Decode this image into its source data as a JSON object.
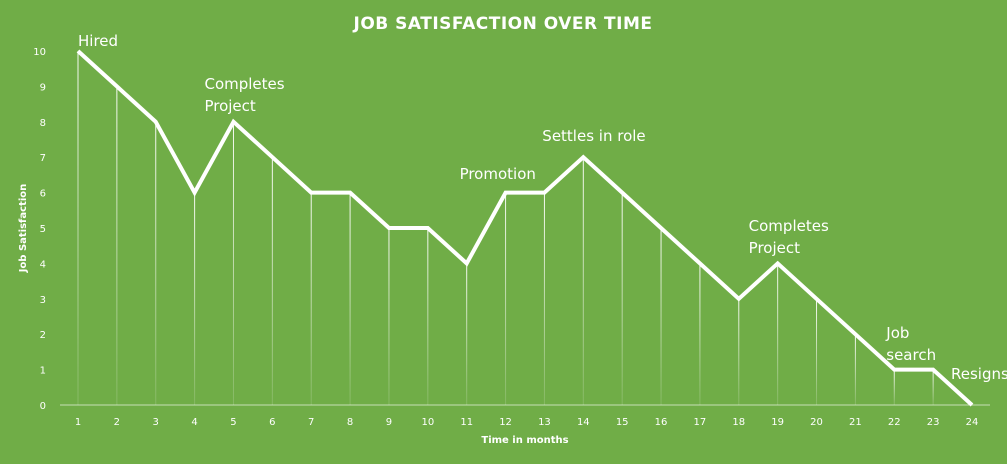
{
  "chart_data": {
    "type": "line",
    "title": "JOB SATISFACTION  OVER TIME",
    "xlabel": "Time in months",
    "ylabel": "Job Satisfaction",
    "x": [
      1,
      2,
      3,
      4,
      5,
      6,
      7,
      8,
      9,
      10,
      11,
      12,
      13,
      14,
      15,
      16,
      17,
      18,
      19,
      20,
      21,
      22,
      23,
      24
    ],
    "y_ticks": [
      0,
      1,
      2,
      3,
      4,
      5,
      6,
      7,
      8,
      9,
      10
    ],
    "ylim": [
      0,
      10
    ],
    "series": [
      {
        "values": [
          10,
          9,
          8,
          6,
          8,
          7,
          6,
          6,
          5,
          5,
          4,
          6,
          6,
          7,
          6,
          5,
          4,
          3,
          4,
          3,
          2,
          1,
          1,
          0
        ]
      }
    ],
    "drop_lines": true,
    "grid": false,
    "annotations": [
      {
        "x": 1,
        "lines": [
          "Hired"
        ]
      },
      {
        "x": 5,
        "lines": [
          "Completes",
          "Project"
        ]
      },
      {
        "x": 12,
        "lines": [
          "Promotion"
        ]
      },
      {
        "x": 14,
        "lines": [
          "Settles in role"
        ]
      },
      {
        "x": 19,
        "lines": [
          "Completes",
          "Project"
        ]
      },
      {
        "x": 22,
        "lines": [
          "Job",
          "search"
        ]
      },
      {
        "x": 24,
        "lines": [
          "Resigns"
        ]
      }
    ],
    "colors": {
      "background": "#70ad47",
      "line": "#ffffff"
    }
  }
}
